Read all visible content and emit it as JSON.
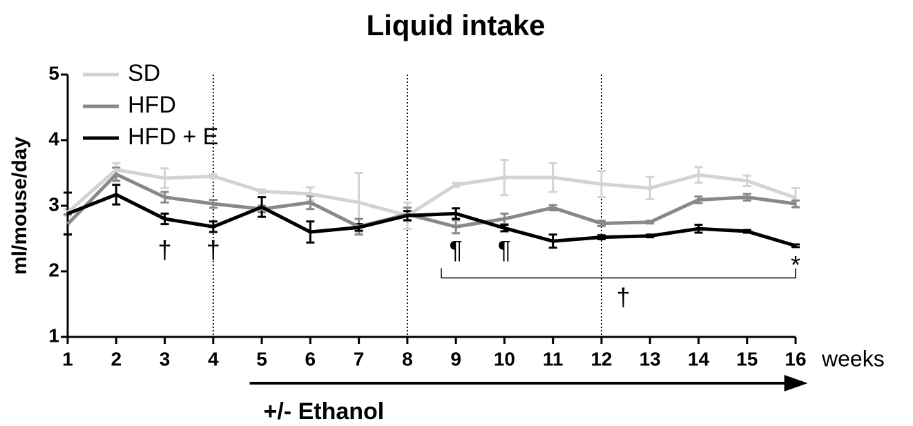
{
  "chart_data": {
    "type": "line",
    "title": "Liquid intake",
    "xlabel": "weeks",
    "ylabel": "ml/mouse/day",
    "x": [
      1,
      2,
      3,
      4,
      5,
      6,
      7,
      8,
      9,
      10,
      11,
      12,
      13,
      14,
      15,
      16
    ],
    "series": [
      {
        "name": "SD",
        "color": "#d3d3d3",
        "values": [
          2.9,
          3.55,
          3.42,
          3.45,
          3.22,
          3.18,
          3.05,
          2.85,
          3.32,
          3.43,
          3.43,
          3.33,
          3.27,
          3.47,
          3.38,
          3.12
        ],
        "errors": [
          0.05,
          0.1,
          0.15,
          0.03,
          0.03,
          0.1,
          0.45,
          0.2,
          0.03,
          0.27,
          0.22,
          0.2,
          0.17,
          0.12,
          0.08,
          0.15
        ]
      },
      {
        "name": "HFD",
        "color": "#888888",
        "values": [
          2.72,
          3.48,
          3.13,
          3.03,
          2.95,
          3.05,
          2.68,
          2.87,
          2.68,
          2.8,
          2.97,
          2.73,
          2.75,
          3.09,
          3.13,
          3.03
        ],
        "errors": [
          0.15,
          0.1,
          0.08,
          0.06,
          0.05,
          0.1,
          0.12,
          0.1,
          0.1,
          0.08,
          0.04,
          0.04,
          0.02,
          0.05,
          0.05,
          0.05
        ]
      },
      {
        "name": "HFD + E",
        "color": "#000000",
        "values": [
          2.88,
          3.17,
          2.8,
          2.68,
          2.98,
          2.6,
          2.67,
          2.85,
          2.88,
          2.66,
          2.46,
          2.52,
          2.54,
          2.65,
          2.61,
          2.39
        ],
        "errors": [
          0.32,
          0.15,
          0.08,
          0.08,
          0.15,
          0.16,
          0.05,
          0.07,
          0.08,
          0.05,
          0.1,
          0.03,
          0.02,
          0.06,
          0.02,
          0.02
        ]
      }
    ],
    "xlim": [
      1,
      16
    ],
    "xticks": [
      1,
      2,
      3,
      4,
      5,
      6,
      7,
      8,
      9,
      10,
      11,
      12,
      13,
      14,
      15,
      16
    ],
    "ylim": [
      1,
      5
    ],
    "yticks": [
      1,
      2,
      3,
      4,
      5
    ],
    "legend": "upper left",
    "vlines": [
      4,
      8,
      12
    ],
    "bracket": {
      "x": [
        8.7,
        16
      ],
      "y": 1.9
    },
    "arrow": {
      "label": "+/- Ethanol",
      "x": [
        4.75,
        16.25
      ]
    },
    "annotations": [
      {
        "text": "†",
        "x": 3,
        "y": 2.3
      },
      {
        "text": "†",
        "x": 4,
        "y": 2.3
      },
      {
        "text": "¶",
        "x": 9,
        "y": 2.3
      },
      {
        "text": "¶",
        "x": 10,
        "y": 2.3
      },
      {
        "text": "*",
        "x": 16,
        "y": 2.07
      },
      {
        "text": "†",
        "x": 12.45,
        "y": 1.58
      }
    ]
  }
}
